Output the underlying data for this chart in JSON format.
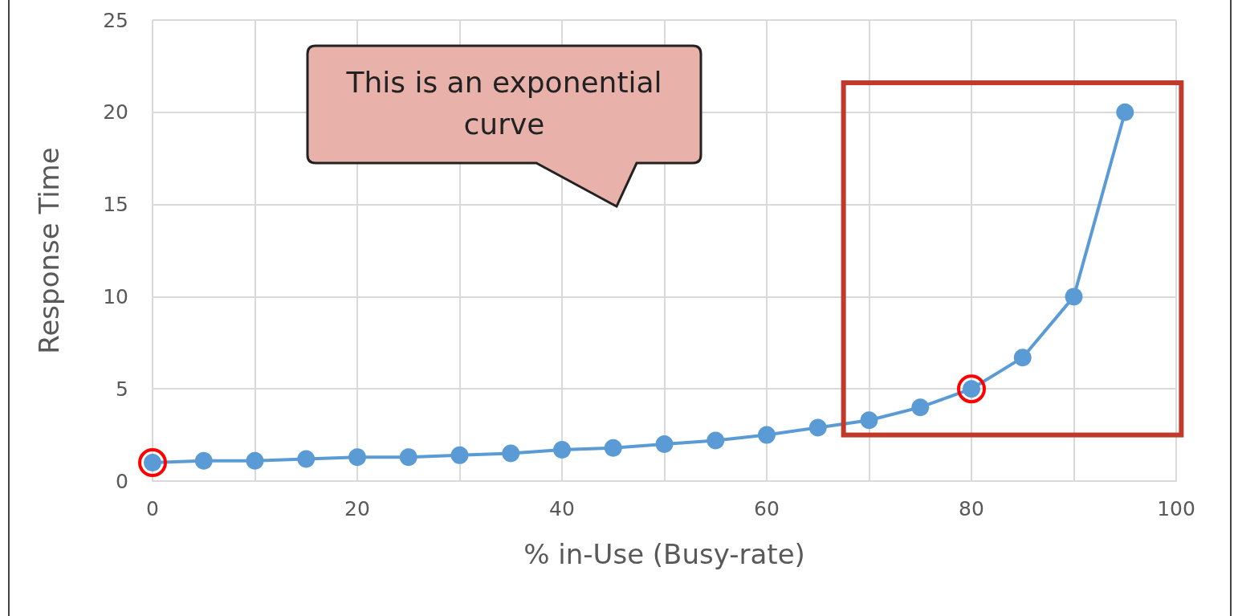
{
  "chart_data": {
    "type": "line",
    "xlabel": "% in-Use (Busy-rate)",
    "ylabel": "Response Time",
    "annotations": [
      "This is an exponential curve"
    ],
    "x": [
      0,
      5,
      10,
      15,
      20,
      25,
      30,
      35,
      40,
      45,
      50,
      55,
      60,
      65,
      70,
      75,
      80,
      85,
      90,
      95
    ],
    "series": [
      {
        "color": "#5b9bd5",
        "values": [
          1,
          1.1,
          1.1,
          1.2,
          1.3,
          1.3,
          1.4,
          1.5,
          1.7,
          1.8,
          2,
          2.2,
          2.5,
          2.9,
          3.3,
          4,
          5,
          6.7,
          10,
          20
        ]
      }
    ],
    "xlim": [
      0,
      100
    ],
    "xticks": [
      0,
      {
        "value": 10,
        "label": null
      },
      20,
      {
        "value": 30,
        "label": null
      },
      40,
      {
        "value": 50,
        "label": null
      },
      60,
      {
        "value": 70,
        "label": null
      },
      80,
      {
        "value": 90,
        "label": null
      },
      100
    ],
    "ylim": [
      0,
      25
    ],
    "yticks": [
      0,
      5,
      10,
      15,
      20,
      25
    ],
    "grid": true,
    "marker": "circle",
    "line_style": "solid"
  }
}
